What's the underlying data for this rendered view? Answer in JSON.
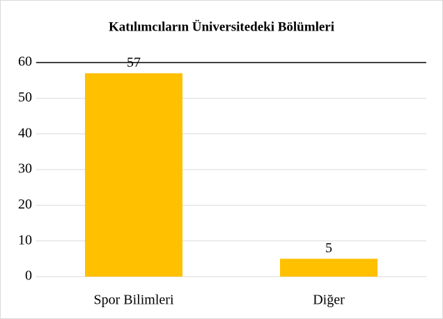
{
  "chart_data": {
    "type": "bar",
    "title": "Katılımcıların Üniversitedeki Bölümleri",
    "categories": [
      "Spor Bilimleri",
      "Diğer"
    ],
    "values": [
      57,
      5
    ],
    "color": "#ffc000",
    "ylim": [
      0,
      60
    ],
    "yticks": [
      0,
      10,
      20,
      30,
      40,
      50,
      60
    ],
    "grid": true
  }
}
